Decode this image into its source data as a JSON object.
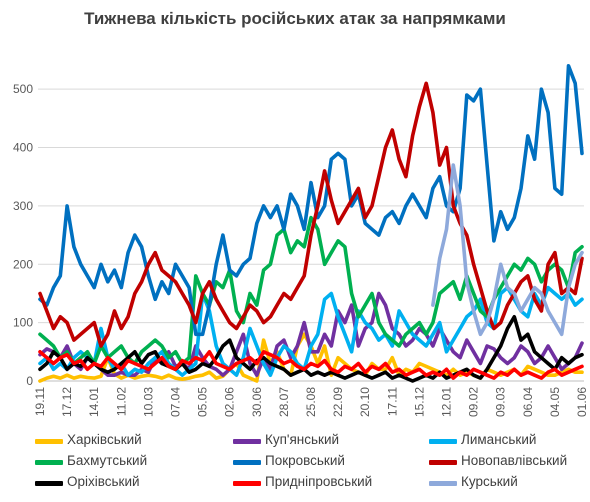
{
  "chart_data": {
    "type": "line",
    "title": "Тижнева кількість російських атак за напрямками",
    "xlabel": "",
    "ylabel": "",
    "ylim": [
      0,
      550
    ],
    "y_ticks": [
      0,
      100,
      200,
      300,
      400,
      500
    ],
    "grid": "horizontal",
    "legend_position": "bottom",
    "x_tick_labels": [
      "19.11",
      "17.12",
      "14.01",
      "11.02",
      "10.03",
      "07.04",
      "05.05",
      "02.06",
      "30.06",
      "28.07",
      "25.08",
      "22.09",
      "20.10",
      "17.11",
      "15.12",
      "12.01",
      "09.02",
      "09.03",
      "06.04",
      "04.05",
      "01.06"
    ],
    "n_points": 81,
    "x_tick_step": 4,
    "series": [
      {
        "name": "Харківський",
        "color": "#FFC000",
        "values": [
          0,
          5,
          8,
          5,
          10,
          5,
          8,
          6,
          5,
          8,
          40,
          12,
          5,
          10,
          5,
          8,
          10,
          8,
          5,
          10,
          5,
          3,
          5,
          8,
          10,
          15,
          5,
          8,
          20,
          30,
          10,
          5,
          0,
          70,
          30,
          50,
          20,
          10,
          60,
          80,
          60,
          30,
          60,
          10,
          40,
          30,
          20,
          15,
          10,
          30,
          20,
          20,
          40,
          10,
          20,
          15,
          30,
          25,
          20,
          15,
          10,
          20,
          10,
          15,
          10,
          5,
          20,
          15,
          10,
          15,
          20,
          10,
          25,
          20,
          15,
          10,
          10,
          15,
          20,
          15,
          15
        ]
      },
      {
        "name": "Куп'янський",
        "color": "#7030A0",
        "values": [
          45,
          55,
          50,
          40,
          60,
          30,
          20,
          40,
          30,
          20,
          10,
          10,
          15,
          10,
          10,
          20,
          15,
          40,
          30,
          50,
          25,
          30,
          20,
          60,
          40,
          25,
          20,
          10,
          20,
          50,
          80,
          30,
          10,
          40,
          20,
          60,
          70,
          40,
          60,
          100,
          50,
          50,
          80,
          60,
          120,
          100,
          130,
          60,
          90,
          100,
          150,
          130,
          90,
          80,
          60,
          70,
          90,
          80,
          60,
          90,
          70,
          50,
          40,
          70,
          50,
          30,
          60,
          55,
          40,
          30,
          40,
          60,
          50,
          30,
          40,
          60,
          40,
          20,
          30,
          40,
          65
        ]
      },
      {
        "name": "Лиманський",
        "color": "#00B0F0",
        "values": [
          30,
          40,
          20,
          30,
          20,
          40,
          50,
          40,
          30,
          90,
          40,
          20,
          30,
          10,
          20,
          15,
          30,
          40,
          50,
          30,
          20,
          10,
          20,
          30,
          150,
          120,
          60,
          30,
          20,
          10,
          40,
          90,
          60,
          30,
          10,
          40,
          60,
          50,
          30,
          20,
          60,
          80,
          140,
          150,
          110,
          80,
          50,
          120,
          100,
          90,
          70,
          80,
          60,
          120,
          100,
          80,
          70,
          60,
          80,
          100,
          50,
          70,
          90,
          110,
          120,
          140,
          100,
          90,
          150,
          160,
          140,
          120,
          110,
          150,
          130,
          160,
          150,
          140,
          150,
          130,
          140
        ]
      },
      {
        "name": "Бахмутський",
        "color": "#00B050",
        "values": [
          80,
          70,
          60,
          40,
          50,
          30,
          40,
          50,
          30,
          60,
          40,
          50,
          60,
          40,
          30,
          50,
          60,
          70,
          60,
          40,
          50,
          30,
          40,
          180,
          150,
          130,
          170,
          160,
          190,
          120,
          100,
          150,
          130,
          190,
          200,
          250,
          260,
          220,
          240,
          230,
          280,
          260,
          200,
          220,
          240,
          230,
          150,
          110,
          130,
          150,
          100,
          80,
          70,
          60,
          80,
          90,
          100,
          80,
          100,
          150,
          160,
          170,
          140,
          180,
          150,
          120,
          110,
          140,
          160,
          180,
          200,
          190,
          210,
          200,
          170,
          190,
          200,
          190,
          160,
          220,
          230
        ]
      },
      {
        "name": "Покровський",
        "color": "#0070C0",
        "values": [
          140,
          130,
          160,
          180,
          300,
          230,
          200,
          180,
          160,
          200,
          170,
          190,
          160,
          220,
          250,
          230,
          180,
          140,
          170,
          150,
          200,
          180,
          160,
          80,
          80,
          130,
          200,
          250,
          190,
          180,
          200,
          210,
          270,
          300,
          280,
          300,
          260,
          320,
          300,
          260,
          340,
          280,
          300,
          380,
          390,
          380,
          300,
          320,
          270,
          260,
          250,
          280,
          290,
          270,
          300,
          320,
          300,
          280,
          330,
          350,
          300,
          290,
          330,
          490,
          480,
          500,
          370,
          240,
          290,
          260,
          280,
          330,
          420,
          380,
          500,
          460,
          330,
          320,
          540,
          510,
          390
        ]
      },
      {
        "name": "Новопавлівський",
        "color": "#C00000",
        "values": [
          150,
          120,
          90,
          110,
          100,
          70,
          80,
          90,
          100,
          60,
          80,
          120,
          90,
          110,
          150,
          170,
          200,
          220,
          190,
          180,
          170,
          150,
          130,
          100,
          150,
          170,
          140,
          120,
          100,
          90,
          110,
          130,
          120,
          100,
          110,
          130,
          150,
          140,
          160,
          180,
          250,
          300,
          360,
          310,
          270,
          290,
          310,
          330,
          280,
          300,
          350,
          400,
          430,
          380,
          350,
          420,
          470,
          510,
          460,
          370,
          400,
          300,
          270,
          250,
          200,
          160,
          120,
          90,
          100,
          130,
          150,
          170,
          180,
          140,
          120,
          200,
          220,
          150,
          160,
          150,
          210
        ]
      },
      {
        "name": "Оріхівський",
        "color": "#000000",
        "values": [
          20,
          30,
          50,
          40,
          20,
          30,
          25,
          40,
          30,
          20,
          15,
          20,
          30,
          40,
          50,
          30,
          45,
          50,
          30,
          25,
          20,
          30,
          15,
          20,
          30,
          25,
          40,
          60,
          70,
          40,
          30,
          20,
          35,
          40,
          30,
          25,
          20,
          10,
          15,
          20,
          10,
          15,
          10,
          15,
          10,
          5,
          10,
          15,
          10,
          5,
          10,
          15,
          5,
          10,
          5,
          0,
          5,
          10,
          5,
          15,
          5,
          10,
          15,
          20,
          10,
          5,
          20,
          40,
          60,
          90,
          110,
          70,
          80,
          50,
          40,
          30,
          20,
          40,
          30,
          40,
          45
        ]
      },
      {
        "name": "Придніпровський",
        "color": "#FF0000",
        "values": [
          50,
          40,
          30,
          40,
          45,
          30,
          35,
          20,
          30,
          25,
          40,
          30,
          20,
          35,
          30,
          25,
          20,
          30,
          40,
          25,
          20,
          35,
          30,
          40,
          35,
          50,
          30,
          25,
          20,
          30,
          35,
          40,
          30,
          50,
          45,
          40,
          30,
          35,
          25,
          20,
          30,
          25,
          35,
          20,
          15,
          25,
          20,
          30,
          15,
          25,
          20,
          30,
          15,
          20,
          10,
          15,
          20,
          10,
          15,
          10,
          20,
          5,
          15,
          10,
          20,
          15,
          10,
          5,
          15,
          10,
          20,
          10,
          15,
          10,
          5,
          15,
          20,
          10,
          15,
          20,
          25
        ]
      },
      {
        "name": "Курський",
        "color": "#8EA9DB",
        "values": [
          null,
          null,
          null,
          null,
          null,
          null,
          null,
          null,
          null,
          null,
          null,
          null,
          null,
          null,
          null,
          null,
          null,
          null,
          null,
          null,
          null,
          null,
          null,
          null,
          null,
          null,
          null,
          null,
          null,
          null,
          null,
          null,
          null,
          null,
          null,
          null,
          null,
          null,
          null,
          null,
          null,
          null,
          null,
          null,
          null,
          null,
          null,
          null,
          null,
          null,
          null,
          null,
          null,
          null,
          null,
          null,
          null,
          null,
          130,
          210,
          260,
          370,
          300,
          170,
          120,
          80,
          100,
          140,
          200,
          160,
          150,
          120,
          140,
          160,
          150,
          120,
          100,
          80,
          160,
          200,
          220
        ]
      }
    ]
  },
  "legend": {
    "items": [
      {
        "label": "Харківський",
        "color": "#FFC000"
      },
      {
        "label": "Куп'янський",
        "color": "#7030A0"
      },
      {
        "label": "Лиманський",
        "color": "#00B0F0"
      },
      {
        "label": "Бахмутський",
        "color": "#00B050"
      },
      {
        "label": "Покровський",
        "color": "#0070C0"
      },
      {
        "label": "Новопавлівський",
        "color": "#C00000"
      },
      {
        "label": "Оріхівський",
        "color": "#000000"
      },
      {
        "label": "Придніпровський",
        "color": "#FF0000"
      },
      {
        "label": "Курський",
        "color": "#8EA9DB"
      }
    ]
  }
}
